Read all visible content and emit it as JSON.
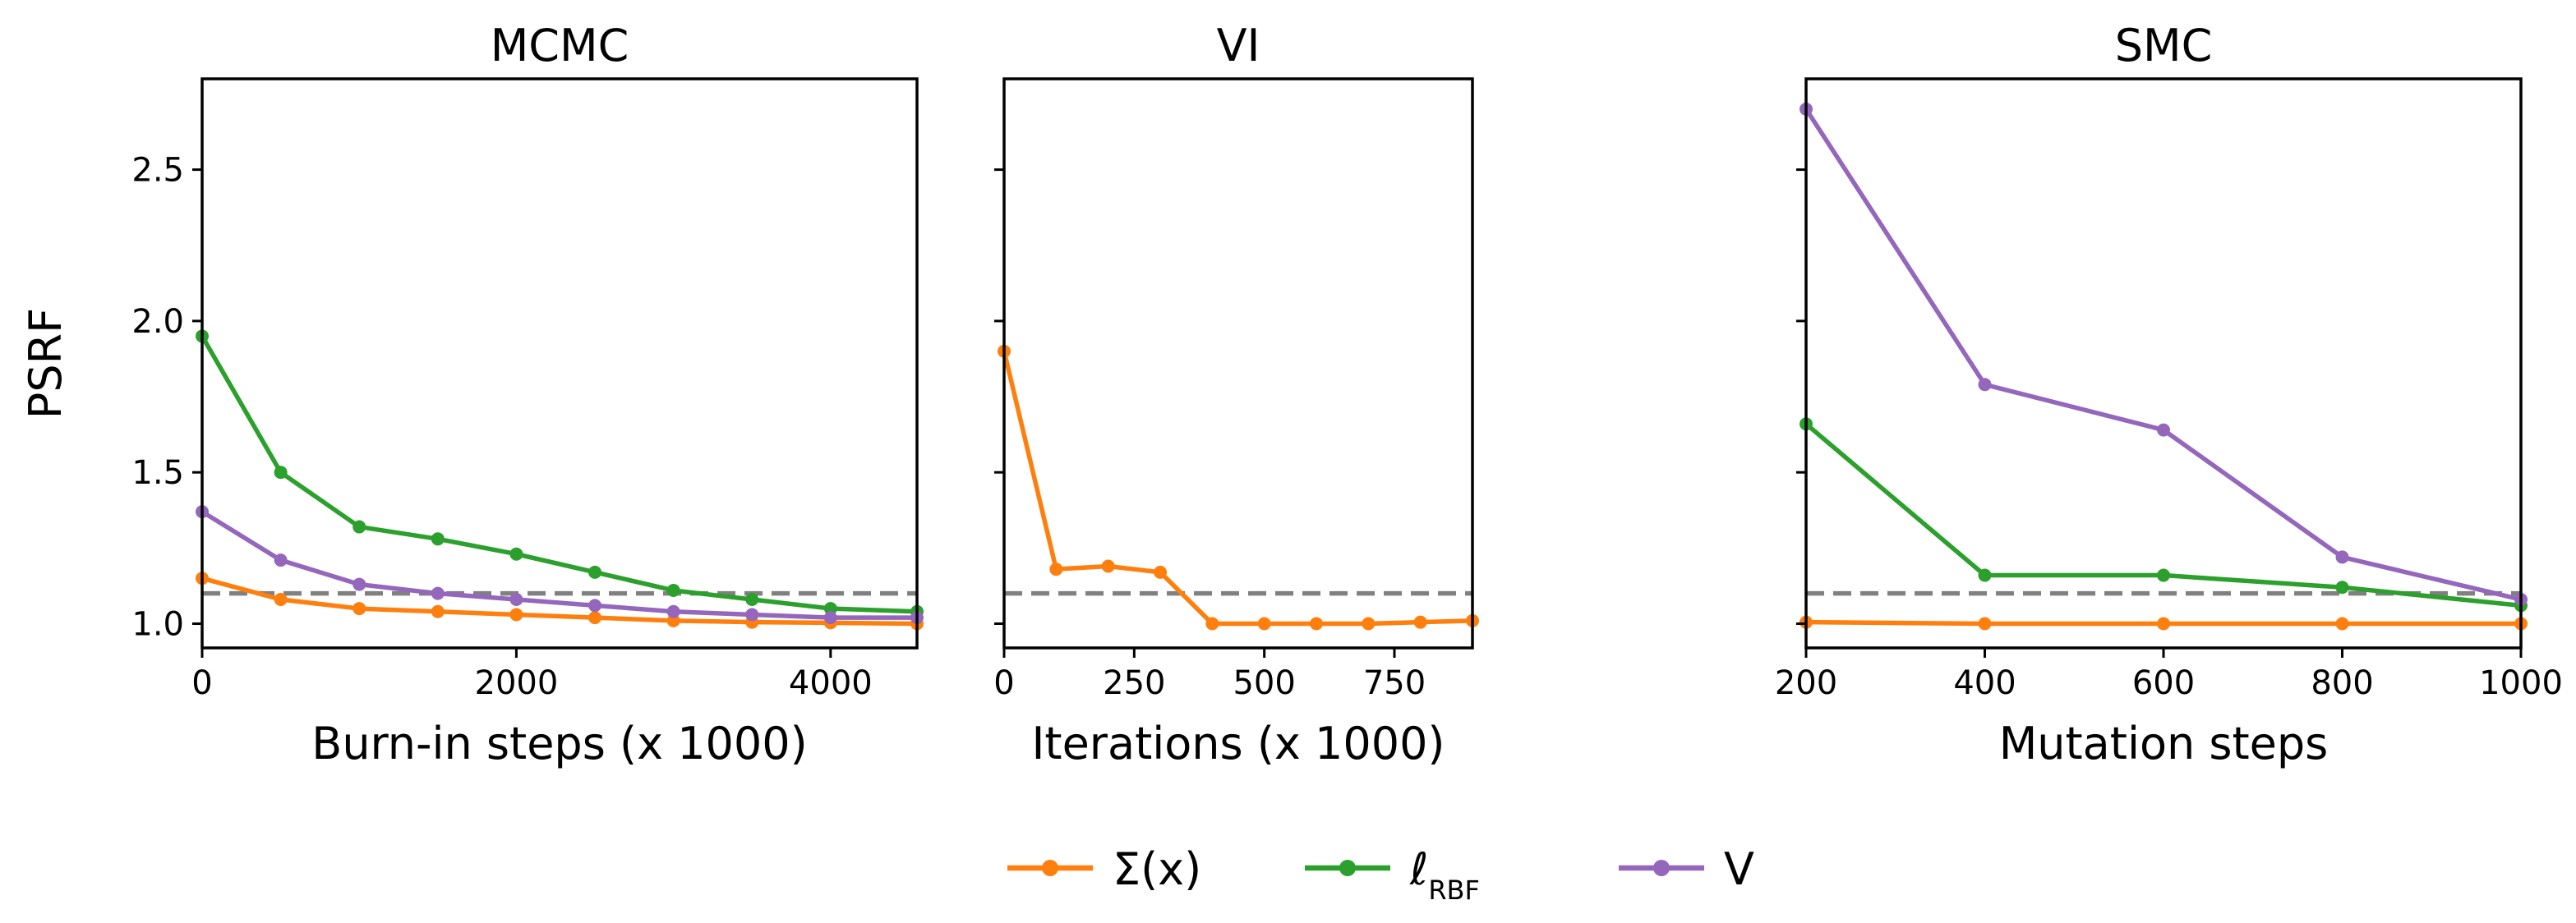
{
  "chart_data": [
    {
      "type": "line",
      "title": "MCMC",
      "xlabel": "Burn-in steps (x 1000)",
      "ylabel": "PSRF",
      "xlim": [
        0,
        4550
      ],
      "ylim": [
        0.92,
        2.8
      ],
      "xticks": [
        0,
        2000,
        4000
      ],
      "xtick_labels": [
        "0",
        "2000",
        "4000"
      ],
      "yticks": [
        1.0,
        1.5,
        2.0,
        2.5
      ],
      "ytick_labels": [
        "1.0",
        "1.5",
        "2.0",
        "2.5"
      ],
      "threshold": 1.1,
      "x": [
        0,
        500,
        1000,
        1500,
        2000,
        2500,
        3000,
        3500,
        4000,
        4550
      ],
      "series": [
        {
          "name": "Σ(x)",
          "color": "#ff7f0e",
          "values": [
            1.15,
            1.08,
            1.05,
            1.04,
            1.03,
            1.02,
            1.01,
            1.005,
            1.003,
            1.0
          ]
        },
        {
          "name": "ℓRBF",
          "color": "#2ca02c",
          "values": [
            1.95,
            1.5,
            1.32,
            1.28,
            1.23,
            1.17,
            1.11,
            1.08,
            1.05,
            1.04
          ]
        },
        {
          "name": "V",
          "color": "#9467bd",
          "values": [
            1.37,
            1.21,
            1.13,
            1.1,
            1.08,
            1.06,
            1.04,
            1.03,
            1.02,
            1.02
          ]
        }
      ]
    },
    {
      "type": "line",
      "title": "VI",
      "xlabel": "Iterations (x 1000)",
      "ylabel": "",
      "xlim": [
        0,
        900
      ],
      "ylim": [
        0.92,
        2.8
      ],
      "xticks": [
        0,
        250,
        500,
        750
      ],
      "xtick_labels": [
        "0",
        "250",
        "500",
        "750"
      ],
      "yticks": [
        1.0,
        1.5,
        2.0,
        2.5
      ],
      "ytick_labels": [],
      "threshold": 1.1,
      "x": [
        0,
        100,
        200,
        300,
        400,
        500,
        600,
        700,
        800,
        900
      ],
      "series": [
        {
          "name": "Σ(x)",
          "color": "#ff7f0e",
          "values": [
            1.9,
            1.18,
            1.19,
            1.17,
            1.0,
            1.0,
            1.0,
            1.0,
            1.005,
            1.01
          ]
        }
      ]
    },
    {
      "type": "line",
      "title": "SMC",
      "xlabel": "Mutation steps",
      "ylabel": "",
      "xlim": [
        200,
        1000
      ],
      "ylim": [
        0.92,
        2.8
      ],
      "xticks": [
        200,
        400,
        600,
        800,
        1000
      ],
      "xtick_labels": [
        "200",
        "400",
        "600",
        "800",
        "1000"
      ],
      "yticks": [
        1.0,
        1.5,
        2.0,
        2.5
      ],
      "ytick_labels": [],
      "threshold": 1.1,
      "x": [
        200,
        400,
        600,
        800,
        1000
      ],
      "series": [
        {
          "name": "Σ(x)",
          "color": "#ff7f0e",
          "values": [
            1.005,
            1.0,
            1.0,
            1.0,
            1.0
          ]
        },
        {
          "name": "ℓRBF",
          "color": "#2ca02c",
          "values": [
            1.66,
            1.16,
            1.16,
            1.12,
            1.06
          ]
        },
        {
          "name": "V",
          "color": "#9467bd",
          "values": [
            2.7,
            1.79,
            1.64,
            1.22,
            1.08
          ]
        }
      ]
    }
  ],
  "legend": {
    "items": [
      {
        "main": "Σ(x)",
        "sub": "",
        "color": "#ff7f0e"
      },
      {
        "main": "ℓ",
        "sub": "RBF",
        "color": "#2ca02c"
      },
      {
        "main": "V",
        "sub": "",
        "color": "#9467bd"
      }
    ]
  },
  "threshold_color": "#808080"
}
